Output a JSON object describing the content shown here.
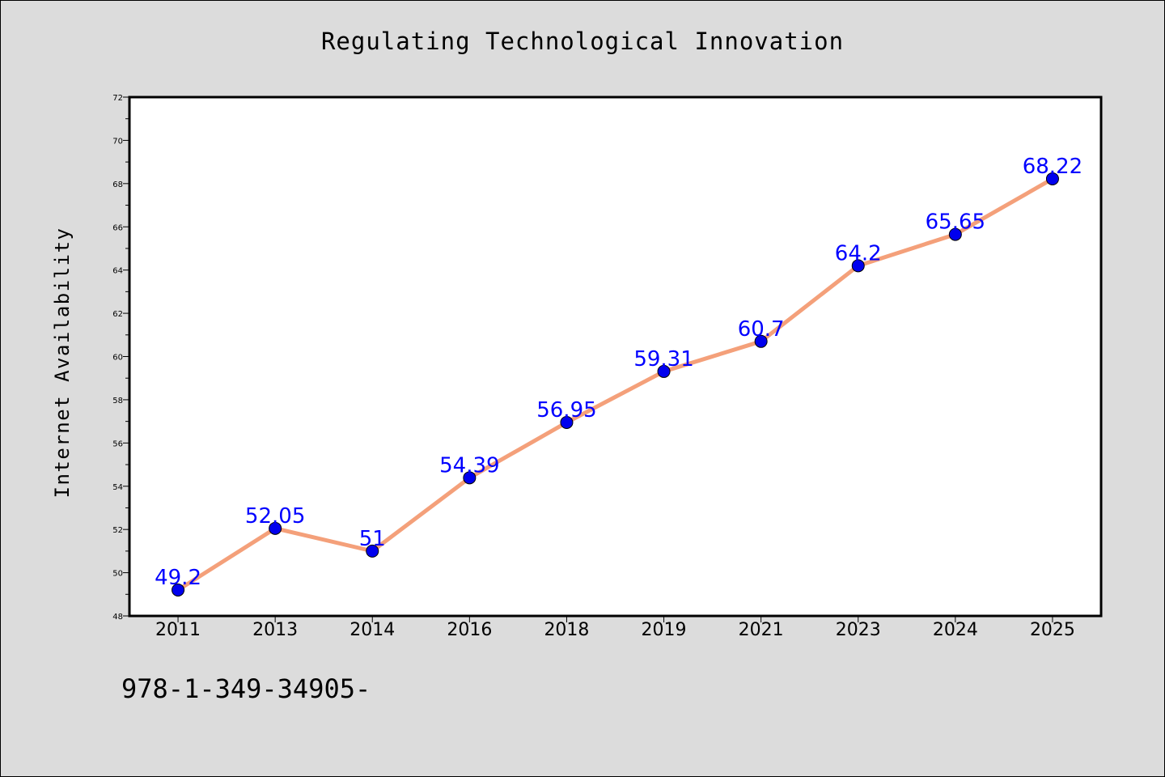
{
  "chart_data": {
    "type": "line",
    "title": "Regulating Technological Innovation",
    "xlabel": "",
    "ylabel": "Internet Availability",
    "categories": [
      "2011",
      "2013",
      "2014",
      "2016",
      "2018",
      "2019",
      "2021",
      "2023",
      "2024",
      "2025"
    ],
    "values": [
      49.2,
      52.05,
      51,
      54.39,
      56.95,
      59.31,
      60.7,
      64.2,
      65.65,
      68.22
    ],
    "data_labels": [
      "49.2",
      "52.05",
      "51",
      "54.39",
      "56.95",
      "59.31",
      "60.7",
      "64.2",
      "65.65",
      "68.22"
    ],
    "ylim": [
      48,
      72
    ],
    "yticks": [
      "48",
      "50",
      "52",
      "54",
      "56",
      "58",
      "60",
      "62",
      "64",
      "66",
      "68",
      "70",
      "72"
    ],
    "grid": false,
    "line_color": "#f4a07a",
    "marker_color": "#0000ee",
    "label_color": "#0000ff"
  },
  "footer": {
    "isbn": "978-1-349-34905-"
  }
}
